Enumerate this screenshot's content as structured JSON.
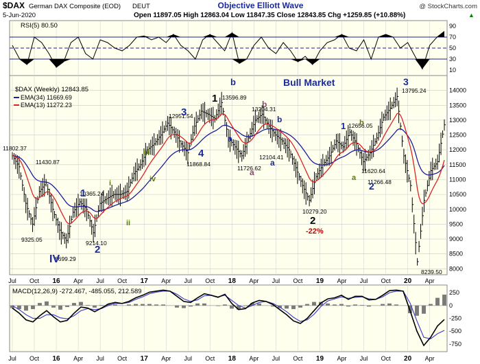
{
  "header": {
    "symbol": "$DAX",
    "description": "German DAX Composite (EOD)",
    "exchange": "DEUT",
    "watermark": "@ StockCharts.com",
    "title": "Objective Elliott Wave",
    "date": "5-Jun-2020",
    "ohlc": "Open 11897.05   High 12863.04   Low 11847.35   Close 12843.85   Chg +1259.85 (+10.88%)",
    "change_arrow": "▲"
  },
  "colors": {
    "panel_bg": "#ffffee",
    "grid": "#cccccc",
    "price": "#000000",
    "ema34": "#1c1c9c",
    "ema13": "#dd2222",
    "rsi": "#000000",
    "macd": "#000000",
    "signal": "#4444cc",
    "histogram": "#7a7a7a",
    "wave_blue": "#1a2a9a",
    "wave_green": "#5a7a10",
    "wave_purple": "#8a4a6a",
    "wave_red": "#cc0000"
  },
  "chart_data": [
    {
      "panel": "rsi",
      "type": "line",
      "legend": "RSI(5) 80.50",
      "yticks": [
        10,
        30,
        50,
        70,
        90
      ],
      "ylim": [
        0,
        100
      ],
      "reference_lines": [
        30,
        50,
        70
      ],
      "x": [
        "2015-07",
        "2015-08",
        "2015-09",
        "2015-10",
        "2015-11",
        "2015-12",
        "2016-01",
        "2016-02",
        "2016-03",
        "2016-04",
        "2016-05",
        "2016-06",
        "2016-07",
        "2016-08",
        "2016-09",
        "2016-10",
        "2016-11",
        "2016-12",
        "2017-01",
        "2017-02",
        "2017-03",
        "2017-04",
        "2017-05",
        "2017-06",
        "2017-07",
        "2017-08",
        "2017-09",
        "2017-10",
        "2017-11",
        "2017-12",
        "2018-01",
        "2018-02",
        "2018-03",
        "2018-04",
        "2018-05",
        "2018-06",
        "2018-07",
        "2018-08",
        "2018-09",
        "2018-10",
        "2018-11",
        "2018-12",
        "2019-01",
        "2019-02",
        "2019-03",
        "2019-04",
        "2019-05",
        "2019-06",
        "2019-07",
        "2019-08",
        "2019-09",
        "2019-10",
        "2019-11",
        "2019-12",
        "2020-01",
        "2020-02",
        "2020-03",
        "2020-04",
        "2020-05",
        "2020-06"
      ],
      "values": [
        55,
        30,
        20,
        70,
        60,
        40,
        15,
        25,
        60,
        70,
        40,
        30,
        65,
        60,
        50,
        45,
        55,
        70,
        72,
        65,
        70,
        60,
        75,
        55,
        45,
        30,
        65,
        75,
        60,
        45,
        78,
        22,
        30,
        55,
        70,
        50,
        40,
        60,
        45,
        25,
        35,
        20,
        45,
        60,
        65,
        75,
        50,
        45,
        65,
        30,
        70,
        75,
        70,
        50,
        60,
        35,
        12,
        55,
        70,
        80.5
      ]
    },
    {
      "panel": "price",
      "type": "line",
      "series": [
        {
          "name": "$DAX (Weekly) 12843.85",
          "style": "ohlc_bars",
          "values": [
            11802,
            11430,
            10200,
            9500,
            10600,
            10900,
            10000,
            9300,
            8950,
            9900,
            10250,
            10000,
            9214,
            10200,
            10365,
            10500,
            10500,
            10600,
            11200,
            11500,
            12000,
            12200,
            12500,
            12900,
            12600,
            12200,
            11900,
            12800,
            13300,
            13200,
            13050,
            13590,
            12400,
            12100,
            11800,
            12400,
            13000,
            13200,
            12800,
            12500,
            12300,
            12000,
            11400,
            10800,
            10300,
            11100,
            11500,
            11800,
            12300,
            12100,
            12600,
            12200,
            11600,
            11900,
            12400,
            13100,
            13400,
            13795,
            11800,
            10800,
            8240,
            10300,
            11300,
            11600,
            12843
          ]
        },
        {
          "name": "EMA(34) 11669.69"
        },
        {
          "name": "EMA(13) 11272.23"
        }
      ],
      "yticks": [
        8000,
        8500,
        9000,
        9500,
        10000,
        10500,
        11000,
        11500,
        12000,
        12500,
        13000,
        13500,
        14000
      ],
      "ylim": [
        7800,
        14500
      ],
      "annotations": [
        "11802.37",
        "11430.87",
        "10365.24",
        "9325.05",
        "9214.10",
        "8699.29",
        "12951.54",
        "11868.84",
        "13596.89",
        "11726.62",
        "13204.31",
        "12104.41",
        "10279.20",
        "12656.05",
        "11620.64",
        "11266.48",
        "13795.24",
        "8239.50"
      ],
      "wave_labels": [
        {
          "text": "IV",
          "color": "#1a2a9a"
        },
        {
          "text": "1",
          "color": "#1a2a9a"
        },
        {
          "text": "2",
          "color": "#1a2a9a"
        },
        {
          "text": "i",
          "color": "#5a7a10"
        },
        {
          "text": "ii",
          "color": "#5a7a10"
        },
        {
          "text": "iii",
          "color": "#5a7a10"
        },
        {
          "text": "iv",
          "color": "#5a7a10"
        },
        {
          "text": "3",
          "color": "#1a2a9a"
        },
        {
          "text": "4",
          "color": "#1a2a9a"
        },
        {
          "text": "1",
          "color": "#000000"
        },
        {
          "text": "a",
          "color": "#1a2a9a"
        },
        {
          "text": "b",
          "color": "#1a2a9a"
        },
        {
          "text": "a",
          "color": "#8a4a6a"
        },
        {
          "text": "b",
          "color": "#8a4a6a"
        },
        {
          "text": "b",
          "color": "#1a2a9a"
        },
        {
          "text": "a",
          "color": "#1a2a9a"
        },
        {
          "text": "2",
          "color": "#000000"
        },
        {
          "text": "-22%",
          "color": "#cc0000"
        },
        {
          "text": "1",
          "color": "#1a2a9a"
        },
        {
          "text": "b",
          "color": "#5a7a10"
        },
        {
          "text": "a",
          "color": "#5a7a10"
        },
        {
          "text": "2",
          "color": "#1a2a9a"
        },
        {
          "text": "3",
          "color": "#1a2a9a"
        },
        {
          "text": "Bull Market",
          "color": "#1a2a9a"
        }
      ]
    },
    {
      "panel": "macd",
      "type": "line",
      "legend": "MACD(12,26,9) -272.467, -485.055, 212.589",
      "yticks": [
        250,
        0,
        -250,
        -500,
        -750
      ],
      "ylim": [
        -900,
        400
      ],
      "macd": [
        -50,
        -150,
        -280,
        -320,
        -200,
        -100,
        -220,
        -320,
        -290,
        -150,
        -30,
        -50,
        -120,
        -50,
        30,
        60,
        40,
        80,
        150,
        200,
        260,
        280,
        300,
        280,
        180,
        80,
        60,
        150,
        230,
        200,
        160,
        220,
        40,
        -80,
        -60,
        50,
        100,
        80,
        20,
        -80,
        -180,
        -300,
        -350,
        -250,
        -100,
        50,
        130,
        150,
        200,
        120,
        180,
        180,
        110,
        120,
        200,
        290,
        300,
        280,
        -100,
        -500,
        -780,
        -620,
        -400,
        -272
      ],
      "signal": [
        0,
        -80,
        -180,
        -250,
        -250,
        -180,
        -180,
        -240,
        -260,
        -200,
        -100,
        -60,
        -80,
        -60,
        0,
        40,
        40,
        60,
        120,
        170,
        230,
        260,
        280,
        280,
        220,
        130,
        80,
        110,
        190,
        200,
        170,
        200,
        100,
        0,
        -50,
        0,
        60,
        80,
        40,
        -30,
        -120,
        -230,
        -310,
        -280,
        -170,
        -20,
        90,
        130,
        170,
        140,
        160,
        170,
        130,
        120,
        170,
        250,
        280,
        280,
        50,
        -300,
        -620,
        -650,
        -550,
        -485
      ],
      "histogram": [
        -50,
        -70,
        -100,
        -70,
        50,
        80,
        -40,
        -80,
        -30,
        50,
        70,
        10,
        -40,
        10,
        30,
        20,
        0,
        20,
        30,
        30,
        30,
        20,
        20,
        0,
        -40,
        -50,
        -20,
        40,
        40,
        0,
        -10,
        20,
        -60,
        -80,
        -10,
        50,
        40,
        0,
        -20,
        -50,
        -60,
        -70,
        -40,
        30,
        70,
        70,
        40,
        20,
        30,
        -20,
        20,
        10,
        -20,
        0,
        30,
        40,
        20,
        0,
        -150,
        -200,
        -160,
        30,
        150,
        213
      ]
    }
  ],
  "x_axis_labels": [
    {
      "text": "Jul",
      "bold": false
    },
    {
      "text": "Oct",
      "bold": false
    },
    {
      "text": "16",
      "bold": true
    },
    {
      "text": "Apr",
      "bold": false
    },
    {
      "text": "Jul",
      "bold": false
    },
    {
      "text": "Oct",
      "bold": false
    },
    {
      "text": "17",
      "bold": true
    },
    {
      "text": "Apr",
      "bold": false
    },
    {
      "text": "Jul",
      "bold": false
    },
    {
      "text": "Oct",
      "bold": false
    },
    {
      "text": "18",
      "bold": true
    },
    {
      "text": "Apr",
      "bold": false
    },
    {
      "text": "Jul",
      "bold": false
    },
    {
      "text": "Oct",
      "bold": false
    },
    {
      "text": "19",
      "bold": true
    },
    {
      "text": "Apr",
      "bold": false
    },
    {
      "text": "Jul",
      "bold": false
    },
    {
      "text": "Oct",
      "bold": false
    },
    {
      "text": "20",
      "bold": true
    },
    {
      "text": "Apr",
      "bold": false
    }
  ]
}
